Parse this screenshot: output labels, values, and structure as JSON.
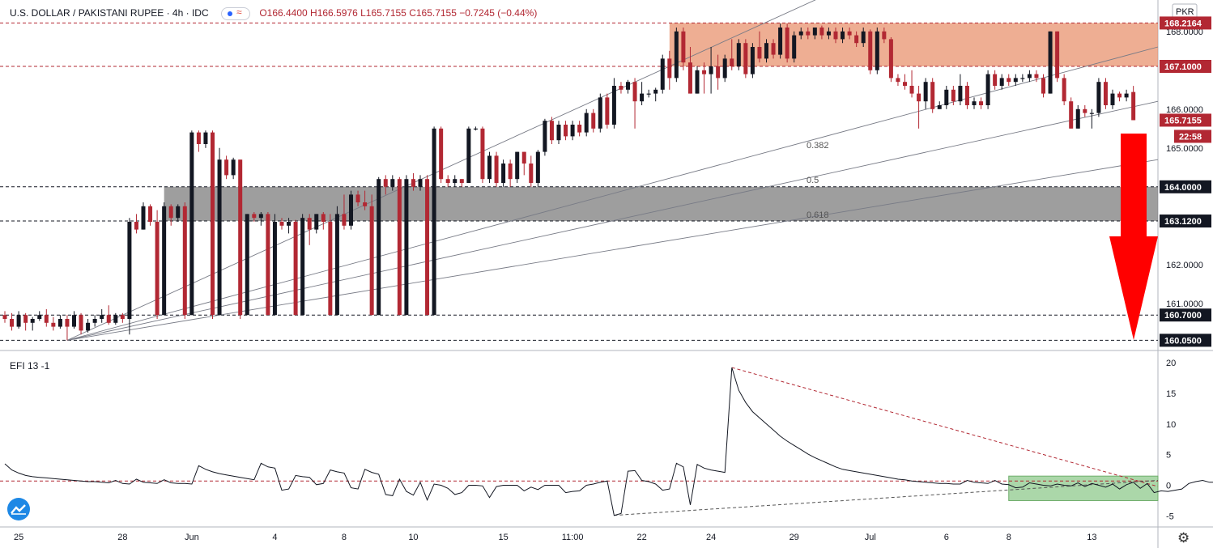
{
  "header": {
    "symbol": "U.S. DOLLAR / PAKISTANI RUPEE · 4h · IDC",
    "open": "O166.4400",
    "high": "H166.5976",
    "low": "L165.7155",
    "close": "C165.7155",
    "change": "−0.7245 (−0.44%)"
  },
  "currency_label": "PKR",
  "indicator_label": "EFI 13  -1",
  "chart_data": [
    {
      "type": "candlestick",
      "title": "U.S. DOLLAR / PAKISTANI RUPEE · 4h · IDC",
      "ylim": [
        159.85,
        168.6
      ],
      "y_ticks": [
        "168.0000",
        "166.0000",
        "165.0000",
        "162.0000",
        "161.0000"
      ],
      "x_ticks": [
        "25",
        "28",
        "Jun",
        "4",
        "8",
        "10",
        "15",
        "11:00",
        "22",
        "24",
        "29",
        "Jul",
        "6",
        "8",
        "13"
      ],
      "price_levels": [
        {
          "label": "168.2164",
          "value": 168.2164,
          "color": "#b22833"
        },
        {
          "label": "167.1000",
          "value": 167.1,
          "color": "#b22833"
        },
        {
          "label": "165.7155",
          "value": 165.7155,
          "color": "#b22833"
        },
        {
          "label": "164.0000",
          "value": 164.0,
          "color": "#131722"
        },
        {
          "label": "163.1200",
          "value": 163.12,
          "color": "#131722"
        },
        {
          "label": "160.7000",
          "value": 160.7,
          "color": "#131722"
        },
        {
          "label": "160.0500",
          "value": 160.05,
          "color": "#131722"
        }
      ],
      "countdown": "22:58",
      "fib_labels": [
        "0.382",
        "0.5",
        "0.618"
      ],
      "zones": [
        {
          "name": "resistance",
          "from": 167.1,
          "to": 168.2164,
          "color": "#e8936f"
        },
        {
          "name": "support",
          "from": 163.12,
          "to": 164.0,
          "color": "#7d7d7d"
        }
      ],
      "candles": [
        [
          160.7,
          160.6,
          160.8,
          160.5
        ],
        [
          160.6,
          160.4,
          160.75,
          160.3
        ],
        [
          160.4,
          160.7,
          160.8,
          160.35
        ],
        [
          160.7,
          160.5,
          160.75,
          160.3
        ],
        [
          160.5,
          160.6,
          160.65,
          160.3
        ],
        [
          160.6,
          160.7,
          160.8,
          160.55
        ],
        [
          160.7,
          160.5,
          160.85,
          160.4
        ],
        [
          160.5,
          160.4,
          160.65,
          160.3
        ],
        [
          160.4,
          160.6,
          160.7,
          160.35
        ],
        [
          160.6,
          160.4,
          160.7,
          160.05
        ],
        [
          160.4,
          160.7,
          160.8,
          160.35
        ],
        [
          160.7,
          160.3,
          160.75,
          160.2
        ],
        [
          160.3,
          160.5,
          160.6,
          160.25
        ],
        [
          160.5,
          160.6,
          160.7,
          160.4
        ],
        [
          160.6,
          160.7,
          160.85,
          160.5
        ],
        [
          160.7,
          160.5,
          160.95,
          160.45
        ],
        [
          160.5,
          160.7,
          160.75,
          160.45
        ],
        [
          160.7,
          160.6,
          160.75,
          160.5
        ],
        [
          160.6,
          163.1,
          163.2,
          160.2
        ],
        [
          163.1,
          162.9,
          163.3,
          162.8
        ],
        [
          162.9,
          163.5,
          163.6,
          162.9
        ],
        [
          163.5,
          163.1,
          163.55,
          163.0
        ],
        [
          163.1,
          160.7,
          163.4,
          160.6
        ],
        [
          160.7,
          163.5,
          163.6,
          160.7
        ],
        [
          163.5,
          163.2,
          163.55,
          163.0
        ],
        [
          163.2,
          163.5,
          163.55,
          163.1
        ],
        [
          163.5,
          160.7,
          163.6,
          160.6
        ],
        [
          160.7,
          165.4,
          165.45,
          160.7
        ],
        [
          165.4,
          165.1,
          165.45,
          164.9
        ],
        [
          165.1,
          165.4,
          165.45,
          165.0
        ],
        [
          165.4,
          160.7,
          165.45,
          160.6
        ],
        [
          160.7,
          164.7,
          165.0,
          160.7
        ],
        [
          164.7,
          164.3,
          164.8,
          164.2
        ],
        [
          164.3,
          164.7,
          164.75,
          164.2
        ],
        [
          164.7,
          160.7,
          164.7,
          160.6
        ],
        [
          160.7,
          163.3,
          163.3,
          160.7
        ],
        [
          163.3,
          163.2,
          163.35,
          163.1
        ],
        [
          163.2,
          163.3,
          163.35,
          163.0
        ],
        [
          163.3,
          160.7,
          163.35,
          160.7
        ],
        [
          160.7,
          163.1,
          163.3,
          160.7
        ],
        [
          163.1,
          163.0,
          163.2,
          162.9
        ],
        [
          163.0,
          163.1,
          163.2,
          162.8
        ],
        [
          163.1,
          160.7,
          163.15,
          160.7
        ],
        [
          160.7,
          163.2,
          163.3,
          160.7
        ],
        [
          163.2,
          162.9,
          163.3,
          162.5
        ],
        [
          162.9,
          163.3,
          163.3,
          162.8
        ],
        [
          163.3,
          163.1,
          163.35,
          162.9
        ],
        [
          163.1,
          160.7,
          163.3,
          160.7
        ],
        [
          160.7,
          163.3,
          163.5,
          160.7
        ],
        [
          163.3,
          163.0,
          163.8,
          162.9
        ],
        [
          163.0,
          163.8,
          163.9,
          162.9
        ],
        [
          163.8,
          163.6,
          163.9,
          163.5
        ],
        [
          163.6,
          163.5,
          163.9,
          163.4
        ],
        [
          163.5,
          160.7,
          163.8,
          160.7
        ],
        [
          160.7,
          164.2,
          164.25,
          160.7
        ],
        [
          164.2,
          164.0,
          164.3,
          163.8
        ],
        [
          164.0,
          164.2,
          164.3,
          163.9
        ],
        [
          164.2,
          160.7,
          164.25,
          160.7
        ],
        [
          160.7,
          164.2,
          164.3,
          160.7
        ],
        [
          164.2,
          164.0,
          164.35,
          163.9
        ],
        [
          164.0,
          164.2,
          164.3,
          163.9
        ],
        [
          164.2,
          160.7,
          164.3,
          160.7
        ],
        [
          160.7,
          165.5,
          165.55,
          160.7
        ],
        [
          165.5,
          164.2,
          165.55,
          164.1
        ],
        [
          164.2,
          164.1,
          164.3,
          164.0
        ],
        [
          164.1,
          164.2,
          164.3,
          164.0
        ],
        [
          164.2,
          164.1,
          164.2,
          164.0
        ],
        [
          164.1,
          165.5,
          165.55,
          164.1
        ],
        [
          165.5,
          165.5,
          165.55,
          165.45
        ],
        [
          165.5,
          164.2,
          165.55,
          164.1
        ],
        [
          164.2,
          164.8,
          164.9,
          164.1
        ],
        [
          164.8,
          164.1,
          164.9,
          164.0
        ],
        [
          164.1,
          164.6,
          164.7,
          164.0
        ],
        [
          164.6,
          164.2,
          164.7,
          164.0
        ],
        [
          164.2,
          164.9,
          164.9,
          164.1
        ],
        [
          164.9,
          164.6,
          164.9,
          164.3
        ],
        [
          164.6,
          164.1,
          164.8,
          164.0
        ],
        [
          164.1,
          164.9,
          164.95,
          164.0
        ],
        [
          164.9,
          165.7,
          165.75,
          164.8
        ],
        [
          165.7,
          165.2,
          165.8,
          165.1
        ],
        [
          165.2,
          165.6,
          165.7,
          165.1
        ],
        [
          165.6,
          165.3,
          165.7,
          165.2
        ],
        [
          165.3,
          165.6,
          165.7,
          165.2
        ],
        [
          165.6,
          165.4,
          165.7,
          165.3
        ],
        [
          165.4,
          165.9,
          166.0,
          165.3
        ],
        [
          165.9,
          165.5,
          166.0,
          165.4
        ],
        [
          165.5,
          166.3,
          166.4,
          165.4
        ],
        [
          166.3,
          165.6,
          166.4,
          165.5
        ],
        [
          165.6,
          166.6,
          166.8,
          165.5
        ],
        [
          166.6,
          166.5,
          166.7,
          166.4
        ],
        [
          166.5,
          166.7,
          166.75,
          166.4
        ],
        [
          166.7,
          166.2,
          166.8,
          165.5
        ],
        [
          166.2,
          166.4,
          166.7,
          166.1
        ],
        [
          166.4,
          166.4,
          166.5,
          166.3
        ],
        [
          166.4,
          166.5,
          166.55,
          166.2
        ],
        [
          166.5,
          167.3,
          167.4,
          166.4
        ],
        [
          167.3,
          166.8,
          167.5,
          166.5
        ],
        [
          166.8,
          168.0,
          168.1,
          166.7
        ],
        [
          168.0,
          167.2,
          168.1,
          167.0
        ],
        [
          167.2,
          166.4,
          167.6,
          166.4
        ],
        [
          166.4,
          167.0,
          167.1,
          166.4
        ],
        [
          167.0,
          166.9,
          167.2,
          166.4
        ],
        [
          166.9,
          167.1,
          167.6,
          166.4
        ],
        [
          167.1,
          166.8,
          167.4,
          166.5
        ],
        [
          166.8,
          167.3,
          167.4,
          166.7
        ],
        [
          167.3,
          167.1,
          167.8,
          167.0
        ],
        [
          167.1,
          167.7,
          167.8,
          167.0
        ],
        [
          167.7,
          166.9,
          167.8,
          166.8
        ],
        [
          166.9,
          167.6,
          167.7,
          166.8
        ],
        [
          167.6,
          167.3,
          168.0,
          167.2
        ],
        [
          167.3,
          167.7,
          167.8,
          167.2
        ],
        [
          167.7,
          167.4,
          167.8,
          167.3
        ],
        [
          167.4,
          168.1,
          168.2,
          167.3
        ],
        [
          168.1,
          167.3,
          168.2,
          167.2
        ],
        [
          167.3,
          167.9,
          168.0,
          167.2
        ],
        [
          167.9,
          168.0,
          168.1,
          167.8
        ],
        [
          168.0,
          167.9,
          168.1,
          167.8
        ],
        [
          167.9,
          168.1,
          168.1,
          167.8
        ],
        [
          168.1,
          167.9,
          168.15,
          167.8
        ],
        [
          167.9,
          168.0,
          168.1,
          167.8
        ],
        [
          168.0,
          167.8,
          168.1,
          167.7
        ],
        [
          167.8,
          168.0,
          168.1,
          167.7
        ],
        [
          168.0,
          167.9,
          168.1,
          167.8
        ],
        [
          167.9,
          167.7,
          168.0,
          167.6
        ],
        [
          167.7,
          168.0,
          168.1,
          167.6
        ],
        [
          168.0,
          167.0,
          168.05,
          166.9
        ],
        [
          167.0,
          168.0,
          168.1,
          166.9
        ],
        [
          168.0,
          167.8,
          168.1,
          167.7
        ],
        [
          167.8,
          166.8,
          167.85,
          166.7
        ],
        [
          166.8,
          166.7,
          166.9,
          166.6
        ],
        [
          166.7,
          166.6,
          166.9,
          166.5
        ],
        [
          166.6,
          166.4,
          167.0,
          166.3
        ],
        [
          166.4,
          166.2,
          166.6,
          165.5
        ],
        [
          166.2,
          166.7,
          166.8,
          166.0
        ],
        [
          166.7,
          166.0,
          166.8,
          165.9
        ],
        [
          166.0,
          166.1,
          166.2,
          166.0
        ],
        [
          166.1,
          166.5,
          166.6,
          166.0
        ],
        [
          166.5,
          166.2,
          166.6,
          166.1
        ],
        [
          166.2,
          166.6,
          166.9,
          166.1
        ],
        [
          166.6,
          166.1,
          166.7,
          166.0
        ],
        [
          166.1,
          166.2,
          166.3,
          166.0
        ],
        [
          166.2,
          166.1,
          166.3,
          166.0
        ],
        [
          166.1,
          166.9,
          167.0,
          166.0
        ],
        [
          166.9,
          166.6,
          167.0,
          166.5
        ],
        [
          166.6,
          166.8,
          166.9,
          166.5
        ],
        [
          166.8,
          166.7,
          166.9,
          166.6
        ],
        [
          166.7,
          166.8,
          166.9,
          166.6
        ],
        [
          166.8,
          166.8,
          166.9,
          166.7
        ],
        [
          166.8,
          166.9,
          167.0,
          166.7
        ],
        [
          166.9,
          166.8,
          167.0,
          166.7
        ],
        [
          166.8,
          166.4,
          166.9,
          166.3
        ],
        [
          166.4,
          168.0,
          168.0,
          166.4
        ],
        [
          168.0,
          166.8,
          168.0,
          166.7
        ],
        [
          166.8,
          166.2,
          166.9,
          166.1
        ],
        [
          166.2,
          165.5,
          166.3,
          165.5
        ],
        [
          165.5,
          166.0,
          166.1,
          165.5
        ],
        [
          166.0,
          165.9,
          166.1,
          165.8
        ],
        [
          165.9,
          165.9,
          166.0,
          165.5
        ],
        [
          165.9,
          166.7,
          166.8,
          165.8
        ],
        [
          166.7,
          166.1,
          166.8,
          166.0
        ],
        [
          166.1,
          166.4,
          166.5,
          166.0
        ],
        [
          166.4,
          166.3,
          166.45,
          166.2
        ],
        [
          166.3,
          166.4,
          166.5,
          166.2
        ],
        [
          166.44,
          165.7155,
          166.5976,
          165.7155
        ]
      ]
    },
    {
      "type": "line",
      "title": "EFI 13 -1",
      "ylim": [
        -6,
        20
      ],
      "y_ticks": [
        "20",
        "15",
        "10",
        "5",
        "0",
        "-5"
      ],
      "values": [
        3.5,
        2.5,
        2.0,
        1.6,
        1.4,
        1.3,
        1.2,
        1.1,
        1.0,
        0.9,
        0.8,
        0.7,
        0.6,
        0.6,
        0.5,
        0.4,
        0.8,
        0.3,
        0.2,
        1.0,
        0.5,
        0.4,
        0.3,
        0.9,
        0.4,
        0.3,
        0.3,
        0.2,
        3.2,
        2.6,
        2.2,
        1.9,
        1.7,
        1.5,
        1.3,
        1.1,
        0.9,
        3.6,
        3.0,
        2.8,
        -0.8,
        -0.6,
        1.6,
        1.4,
        1.3,
        0.1,
        0.3,
        2.5,
        2.2,
        2.0,
        -0.4,
        -0.6,
        2.6,
        2.1,
        1.8,
        -1.5,
        -1.7,
        1.0,
        -1.0,
        -1.6,
        0.5,
        -2.4,
        0.2,
        0.0,
        -0.5,
        -1.5,
        -1.2,
        0.0,
        0.0,
        -0.1,
        -2.0,
        -0.2,
        0.0,
        0.0,
        0.0,
        -0.9,
        -0.3,
        -0.7,
        0.0,
        0.0,
        0.0,
        -1.2,
        -1.0,
        -0.9,
        0.0,
        0.2,
        0.5,
        0.7,
        -4.9,
        -4.6,
        2.3,
        2.4,
        0.8,
        0.6,
        0.2,
        -0.8,
        -0.6,
        3.6,
        3.0,
        -3.2,
        3.4,
        2.8,
        2.5,
        2.3,
        2.1,
        19.2,
        15.5,
        13.5,
        12.0,
        11.0,
        10.0,
        9.0,
        8.0,
        7.2,
        6.5,
        5.8,
        5.1,
        4.5,
        4.0,
        3.5,
        3.0,
        2.6,
        2.4,
        2.2,
        2.0,
        1.8,
        1.6,
        1.4,
        1.2,
        1.0,
        0.9,
        0.7,
        0.6,
        0.5,
        0.4,
        0.3,
        0.3,
        0.2,
        0.2,
        0.8,
        0.5,
        0.4,
        0.3,
        0.8,
        0.2,
        0.1,
        -0.4,
        -0.3,
        0.4,
        0.2,
        0.0,
        -0.1,
        0.2,
        0.0,
        -0.1,
        0.4,
        -0.2,
        0.3,
        0.0,
        -0.3,
        0.2,
        -0.6,
        0.1,
        0.5,
        -0.5,
        0.3,
        -1.2,
        -0.9,
        -1.0,
        -0.8,
        -0.6,
        0.3,
        0.6,
        0.8,
        0.5,
        0.5,
        0.9,
        1.2,
        0.9,
        0.7,
        0.6,
        0.4,
        0.0,
        -0.6,
        -1.5,
        -2.5,
        -1.6,
        -1.4,
        -0.5,
        -0.3,
        -0.6,
        -0.8,
        -0.5,
        -0.6,
        -0.9,
        -0.4,
        -0.5,
        -0.7,
        -0.6
      ],
      "reference_level": 0.7,
      "zones": [
        {
          "name": "efi-range",
          "from": -2.5,
          "to": 1.5,
          "color": "#8fc98c"
        }
      ]
    }
  ],
  "colors": {
    "up": "#131722",
    "down": "#b22833",
    "resistance_zone": "#e8936f",
    "support_zone": "#7d7d7d",
    "arrow": "#ff0000",
    "efi_zone": "#8fc98c"
  }
}
